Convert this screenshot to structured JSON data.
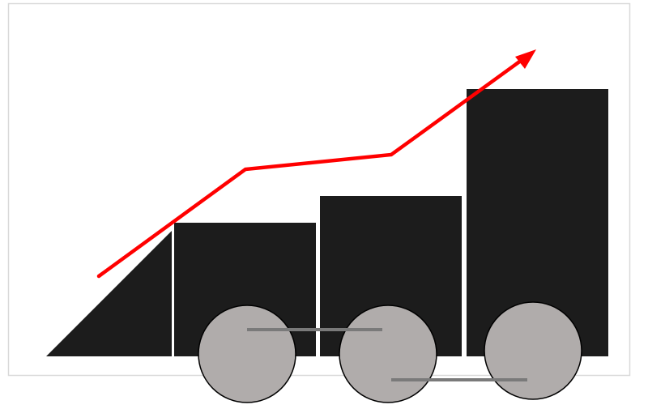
{
  "diagram": {
    "subject": "growth-train",
    "colors": {
      "background": "#ffffff",
      "frame": "#d9d9d9",
      "cars": "#1c1c1c",
      "car-separator": "#ffffff",
      "wheel-fill": "#b0acab",
      "wheel-stroke": "#000000",
      "coupling-rod": "#7a7a7a",
      "trend-arrow": "#ff0000"
    },
    "parts": {
      "cars": [
        "nose-wedge",
        "car-1",
        "car-2",
        "car-3"
      ],
      "wheels": [
        "wheel-1",
        "wheel-2",
        "wheel-3"
      ],
      "rods": [
        "coupling-rod-upper",
        "coupling-rod-lower"
      ],
      "trend": "rising-trend-arrow"
    }
  }
}
